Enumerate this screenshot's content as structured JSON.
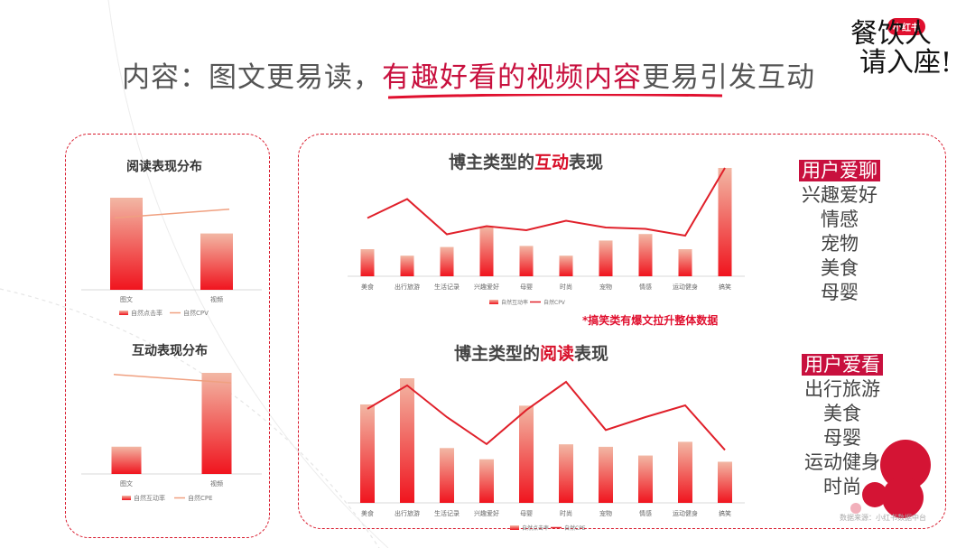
{
  "header": {
    "prefix": "内容：图文更易读，",
    "highlight": "有趣好看的视频内容",
    "suffix": "更易引发互动"
  },
  "logo": {
    "badge": "小红书",
    "line1": "餐饮人",
    "line2": "请入座!"
  },
  "colors": {
    "accent": "#e0102f",
    "bar_top": "#f2b7a4",
    "bar_bottom": "#f0141e",
    "line": "#e0202a",
    "line_light": "#f0a080"
  },
  "side_lists": {
    "chat": {
      "tag": "用户爱聊",
      "items": [
        "兴趣爱好",
        "情感",
        "宠物",
        "美食",
        "母婴"
      ]
    },
    "watch": {
      "tag": "用户爱看",
      "items": [
        "出行旅游",
        "美食",
        "母婴",
        "运动健身",
        "时尚"
      ]
    }
  },
  "annotation": "*搞笑类有爆文拉升整体数据",
  "source": "数据来源：小红书数据中台",
  "chart_data": [
    {
      "type": "bar",
      "title": "阅读表现分布",
      "categories": [
        "图文",
        "视频"
      ],
      "series": [
        {
          "name": "自然点击率",
          "kind": "bar",
          "values": [
            0.85,
            0.52
          ]
        },
        {
          "name": "自然CPV",
          "kind": "line",
          "values": [
            0.72,
            0.84
          ]
        }
      ],
      "legend": "bottom"
    },
    {
      "type": "bar",
      "title": "互动表现分布",
      "categories": [
        "图文",
        "视频"
      ],
      "series": [
        {
          "name": "自然互动率",
          "kind": "bar",
          "values": [
            0.27,
            1.0
          ]
        },
        {
          "name": "自然CPE",
          "kind": "line",
          "values": [
            0.95,
            0.78
          ]
        }
      ],
      "legend": "bottom"
    },
    {
      "type": "bar",
      "title_prefix": "博主类型的",
      "title_highlight": "互动",
      "title_suffix": "表现",
      "categories": [
        "美食",
        "出行旅游",
        "生活记录",
        "兴趣爱好",
        "母婴",
        "时尚",
        "宠物",
        "情感",
        "运动健身",
        "搞笑"
      ],
      "series": [
        {
          "name": "自然互动率",
          "kind": "bar",
          "values": [
            0.25,
            0.19,
            0.27,
            0.46,
            0.28,
            0.19,
            0.33,
            0.39,
            0.25,
            1.0
          ]
        },
        {
          "name": "自然CPV",
          "kind": "line",
          "values": [
            0.63,
            0.77,
            0.51,
            0.57,
            0.54,
            0.61,
            0.56,
            0.55,
            0.5,
            1.0
          ]
        }
      ],
      "legend": "bottom"
    },
    {
      "type": "bar",
      "title_prefix": "博主类型的",
      "title_highlight": "阅读",
      "title_suffix": "表现",
      "categories": [
        "美食",
        "出行旅游",
        "生活记录",
        "兴趣爱好",
        "母婴",
        "时尚",
        "宠物",
        "情感",
        "运动健身",
        "搞笑"
      ],
      "series": [
        {
          "name": "自然点击率",
          "kind": "bar",
          "values": [
            0.79,
            1.0,
            0.44,
            0.35,
            0.78,
            0.47,
            0.45,
            0.38,
            0.49,
            0.33
          ]
        },
        {
          "name": "自然CPE",
          "kind": "line",
          "values": [
            0.77,
            0.97,
            0.7,
            0.47,
            0.76,
            1.0,
            0.59,
            0.7,
            0.8,
            0.42
          ]
        }
      ],
      "legend": "bottom"
    }
  ]
}
